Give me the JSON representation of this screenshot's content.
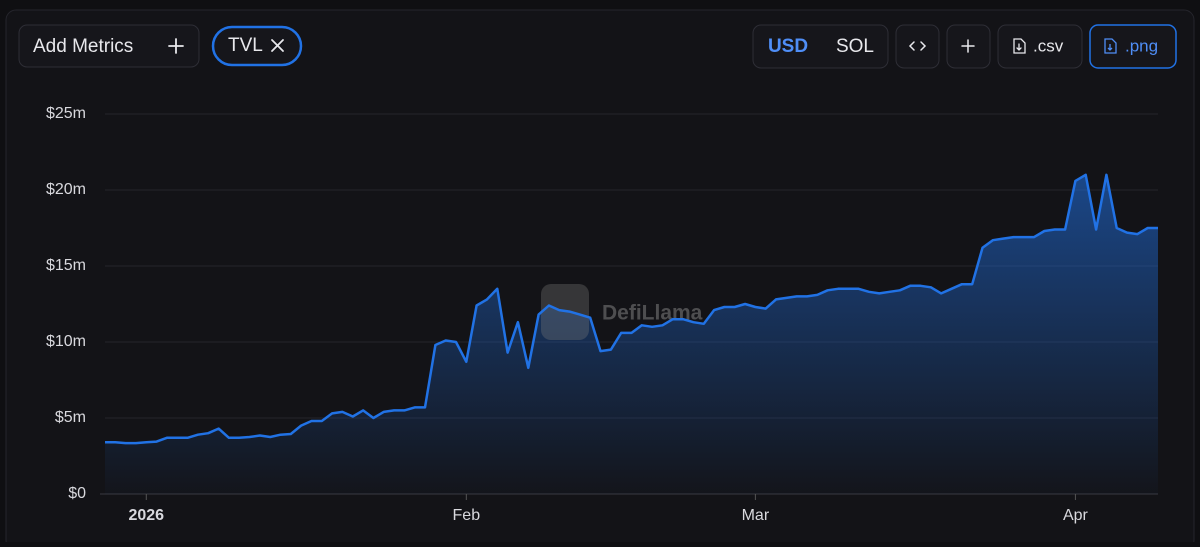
{
  "toolbar": {
    "add_metrics": "Add Metrics",
    "metric_chip": "TVL",
    "currency_options": [
      "USD",
      "SOL"
    ],
    "csv": ".csv",
    "png": ".png"
  },
  "watermark": "DefiLlama",
  "chart_data": {
    "type": "area",
    "categories": [
      null,
      null,
      null,
      null,
      "2026",
      null,
      null,
      null,
      null,
      null,
      null,
      null,
      null,
      null,
      null,
      null,
      null,
      null,
      null,
      null,
      null,
      null,
      null,
      null,
      null,
      null,
      null,
      null,
      null,
      null,
      null,
      null,
      null,
      null,
      null,
      "Feb",
      null,
      null,
      null,
      null,
      null,
      null,
      null,
      null,
      null,
      null,
      null,
      null,
      null,
      null,
      null,
      null,
      null,
      null,
      null,
      null,
      null,
      null,
      null,
      null,
      null,
      null,
      null,
      "Mar",
      null,
      null,
      null,
      null,
      null,
      null,
      null,
      null,
      null,
      null,
      null,
      null,
      null,
      null,
      null,
      null,
      null,
      null,
      null,
      null,
      null,
      null,
      null,
      null,
      null,
      null,
      null,
      null,
      null,
      null,
      "Apr",
      null,
      null,
      null,
      null,
      null,
      null,
      null,
      null
    ],
    "values": [
      3.4,
      3.4,
      3.35,
      3.35,
      3.4,
      3.45,
      3.7,
      3.7,
      3.7,
      3.9,
      4.0,
      4.3,
      3.7,
      3.7,
      3.75,
      3.85,
      3.75,
      3.9,
      3.95,
      4.5,
      4.8,
      4.8,
      5.3,
      5.4,
      5.1,
      5.5,
      5.0,
      5.4,
      5.5,
      5.5,
      5.7,
      5.7,
      9.8,
      10.1,
      10.0,
      8.7,
      12.4,
      12.8,
      13.5,
      9.3,
      11.3,
      8.3,
      11.8,
      12.4,
      12.1,
      12.0,
      11.8,
      11.6,
      9.4,
      9.5,
      10.6,
      10.6,
      11.1,
      11.0,
      11.1,
      11.5,
      11.5,
      11.3,
      11.2,
      12.1,
      12.3,
      12.3,
      12.5,
      12.3,
      12.2,
      12.8,
      12.9,
      13.0,
      13.0,
      13.1,
      13.4,
      13.5,
      13.5,
      13.5,
      13.3,
      13.2,
      13.3,
      13.4,
      13.7,
      13.7,
      13.6,
      13.2,
      13.5,
      13.8,
      13.8,
      16.2,
      16.7,
      16.8,
      16.9,
      16.9,
      16.9,
      17.3,
      17.4,
      17.4,
      20.6,
      21.0,
      17.4,
      21.0,
      17.5,
      17.2,
      17.1,
      17.5,
      17.5
    ],
    "color": "#2172e5",
    "ylim": [
      0,
      25
    ],
    "yticks": [
      {
        "value": 0,
        "label": "$0"
      },
      {
        "value": 5,
        "label": "$5m"
      },
      {
        "value": 10,
        "label": "$10m"
      },
      {
        "value": 15,
        "label": "$15m"
      },
      {
        "value": 20,
        "label": "$20m"
      },
      {
        "value": 25,
        "label": "$25m"
      }
    ],
    "grid": true
  }
}
